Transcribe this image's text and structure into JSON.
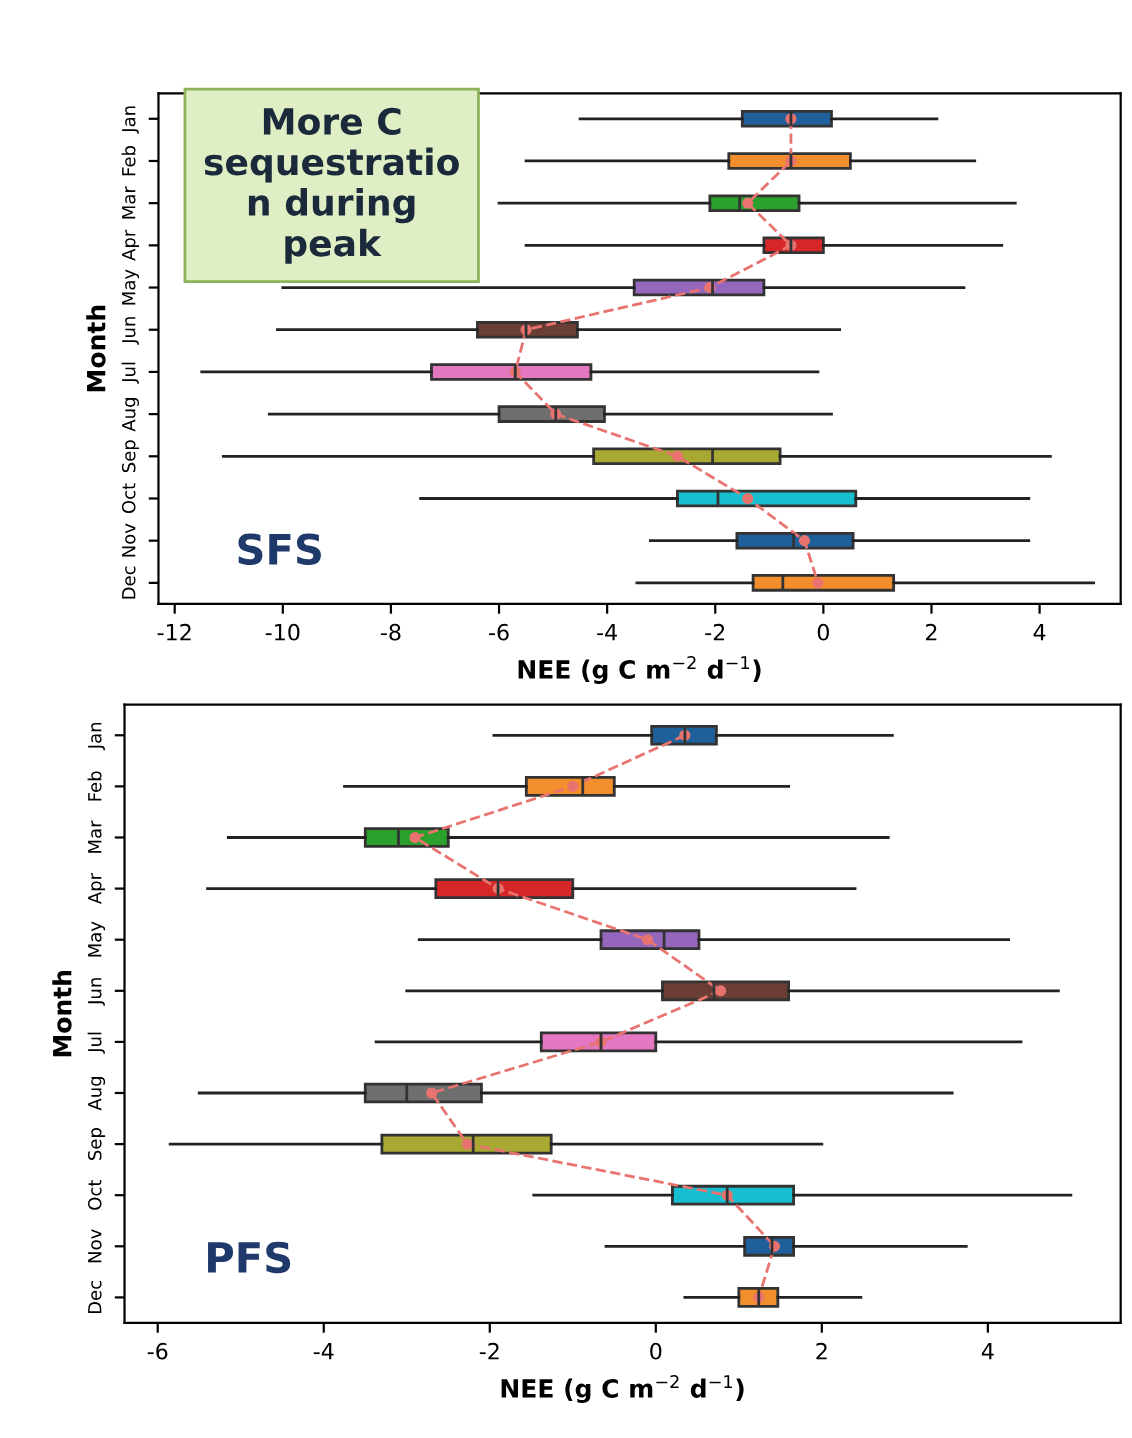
{
  "chart_data": [
    {
      "type": "box",
      "orientation": "horizontal",
      "ylabel": "Month",
      "xlabel": "NEE (g C m$^{−2}$ d$^{−1}$)",
      "categories": [
        "Jan",
        "Feb",
        "Mar",
        "Apr",
        "May",
        "Jun",
        "Jul",
        "Aug",
        "Sep",
        "Oct",
        "Nov",
        "Dec"
      ],
      "xlim": [
        -12.3,
        5.5
      ],
      "xticks": [
        -12,
        -10,
        -8,
        -6,
        -4,
        -2,
        0,
        2,
        4
      ],
      "grid": false,
      "legend": false,
      "annotations": [
        "More C\nsequestratio\nn during\npeak",
        "SFS"
      ],
      "series": [
        {
          "type": "box",
          "colors": [
            "#1f5f9a",
            "#f28e2b",
            "#2ca02c",
            "#d62728",
            "#9467bd",
            "#6b3e35",
            "#e377c2",
            "#6f6f6f",
            "#a8a832",
            "#17becf",
            "#1f5f9a",
            "#f28e2b"
          ],
          "boxes": [
            {
              "low": -4.5,
              "q1": -1.5,
              "median": -0.6,
              "q3": 0.15,
              "high": 2.1
            },
            {
              "low": -5.5,
              "q1": -1.75,
              "median": -0.6,
              "q3": 0.5,
              "high": 2.8
            },
            {
              "low": -6,
              "q1": -2.1,
              "median": -1.55,
              "q3": -0.45,
              "high": 3.55
            },
            {
              "low": -5.5,
              "q1": -1.1,
              "median": -0.6,
              "q3": 0.0,
              "high": 3.3
            },
            {
              "low": -10.0,
              "q1": -3.5,
              "median": -2.05,
              "q3": -1.1,
              "high": 2.6
            },
            {
              "low": -10.1,
              "q1": -6.4,
              "median": -5.5,
              "q3": -4.55,
              "high": 0.3
            },
            {
              "low": -11.5,
              "q1": -7.25,
              "median": -5.7,
              "q3": -4.3,
              "high": -0.1
            },
            {
              "low": -10.25,
              "q1": -6.0,
              "median": -4.95,
              "q3": -4.05,
              "high": 0.15
            },
            {
              "low": -11.1,
              "q1": -4.25,
              "median": -2.05,
              "q3": -0.8,
              "high": 4.2
            },
            {
              "low": -7.45,
              "q1": -2.7,
              "median": -1.95,
              "q3": 0.6,
              "high": 3.8
            },
            {
              "low": -3.2,
              "q1": -1.6,
              "median": -0.55,
              "q3": 0.55,
              "high": 3.8
            },
            {
              "low": -3.45,
              "q1": -1.3,
              "median": -0.75,
              "q3": 1.3,
              "high": 5.0
            }
          ]
        },
        {
          "type": "line",
          "color": "#e8736f",
          "line_style": "dashed",
          "marker": "circle",
          "values": [
            -0.6,
            -0.6,
            -1.4,
            -0.6,
            -2.1,
            -5.5,
            -5.7,
            -4.95,
            -2.7,
            -1.4,
            -0.35,
            -0.1
          ]
        }
      ]
    },
    {
      "type": "box",
      "orientation": "horizontal",
      "ylabel": "Month",
      "xlabel": "NEE (g C m$^{−2}$ d$^{−1}$)",
      "categories": [
        "Jan",
        "Feb",
        "Mar",
        "Apr",
        "May",
        "Jun",
        "Jul",
        "Aug",
        "Sep",
        "Oct",
        "Nov",
        "Dec"
      ],
      "xlim": [
        -6.4,
        5.6
      ],
      "xticks": [
        -6,
        -4,
        -2,
        0,
        2,
        4
      ],
      "grid": false,
      "legend": false,
      "annotations": [
        "PFS"
      ],
      "series": [
        {
          "type": "box",
          "colors": [
            "#1f5f9a",
            "#f28e2b",
            "#2ca02c",
            "#d62728",
            "#9467bd",
            "#6b3e35",
            "#e377c2",
            "#6f6f6f",
            "#a8a832",
            "#17becf",
            "#1f5f9a",
            "#f28e2b"
          ],
          "boxes": [
            {
              "low": -1.95,
              "q1": -0.05,
              "median": 0.35,
              "q3": 0.73,
              "high": 2.85
            },
            {
              "low": -3.75,
              "q1": -1.56,
              "median": -0.88,
              "q3": -0.5,
              "high": 1.6
            },
            {
              "low": -5.15,
              "q1": -3.5,
              "median": -3.1,
              "q3": -2.5,
              "high": 2.8
            },
            {
              "low": -5.4,
              "q1": -2.65,
              "median": -1.9,
              "q3": -1.0,
              "high": 2.4
            },
            {
              "low": -2.85,
              "q1": -0.66,
              "median": 0.1,
              "q3": 0.52,
              "high": 4.25
            },
            {
              "low": -3.0,
              "q1": 0.08,
              "median": 0.7,
              "q3": 1.6,
              "high": 4.85
            },
            {
              "low": -3.37,
              "q1": -1.38,
              "median": -0.66,
              "q3": 0.0,
              "high": 4.4
            },
            {
              "low": -5.5,
              "q1": -3.5,
              "median": -3.0,
              "q3": -2.1,
              "high": 3.57
            },
            {
              "low": -5.85,
              "q1": -3.3,
              "median": -2.2,
              "q3": -1.26,
              "high": 2.0
            },
            {
              "low": -1.47,
              "q1": 0.2,
              "median": 0.86,
              "q3": 1.66,
              "high": 5.0
            },
            {
              "low": -0.6,
              "q1": 1.07,
              "median": 1.4,
              "q3": 1.66,
              "high": 3.74
            },
            {
              "low": 0.35,
              "q1": 1.0,
              "median": 1.24,
              "q3": 1.47,
              "high": 2.47
            }
          ]
        },
        {
          "type": "line",
          "color": "#e8736f",
          "line_style": "dashed",
          "marker": "circle",
          "values": [
            0.35,
            -1.0,
            -2.9,
            -1.9,
            -0.1,
            0.78,
            -0.66,
            -2.7,
            -2.27,
            0.86,
            1.43,
            1.24
          ]
        }
      ]
    }
  ]
}
